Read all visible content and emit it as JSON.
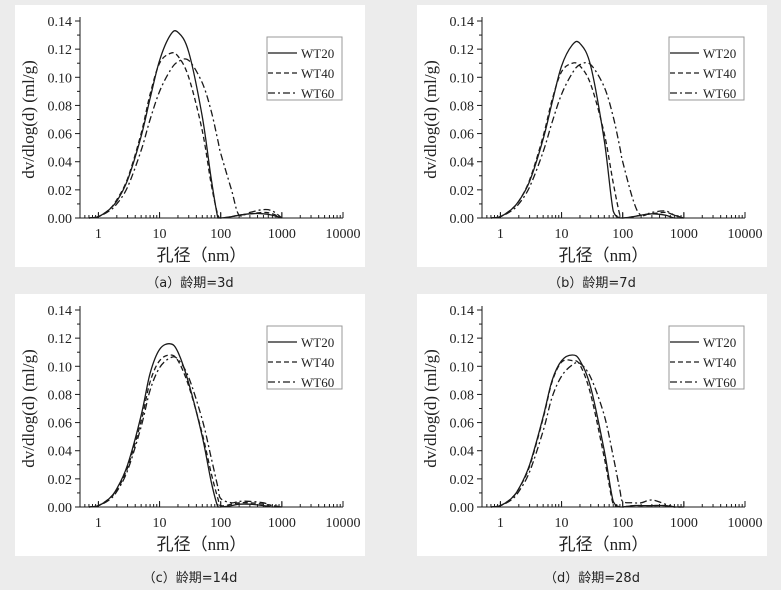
{
  "chart_data": [
    {
      "type": "line",
      "title": "（a）龄期=3d",
      "xlabel": "孔径（nm）",
      "ylabel": "dv/dlog(d) (ml/g)",
      "xscale": "log",
      "xlim": [
        0.5,
        10000
      ],
      "ylim": [
        0,
        0.14
      ],
      "xticks": [
        "1",
        "10",
        "100",
        "1000",
        "10000"
      ],
      "yticks": [
        "0.00",
        "0.02",
        "0.04",
        "0.06",
        "0.08",
        "0.10",
        "0.12",
        "0.14"
      ],
      "legend_position": "top-right",
      "x": [
        0.7,
        1,
        1.5,
        2,
        3,
        5,
        7,
        10,
        15,
        20,
        30,
        50,
        70,
        90,
        100,
        150,
        200,
        300,
        500,
        700,
        1000
      ],
      "series": [
        {
          "name": "WT20",
          "values": [
            0,
            0.001,
            0.006,
            0.012,
            0.027,
            0.058,
            0.085,
            0.112,
            0.13,
            0.132,
            0.118,
            0.072,
            0.028,
            0.0,
            0,
            0.001,
            0.002,
            0.003,
            0.003,
            0.002,
            0
          ]
        },
        {
          "name": "WT40",
          "values": [
            0,
            0.001,
            0.006,
            0.013,
            0.028,
            0.06,
            0.088,
            0.11,
            0.117,
            0.115,
            0.1,
            0.062,
            0.024,
            0.002,
            0,
            0.001,
            0.002,
            0.003,
            0.004,
            0.003,
            0
          ]
        },
        {
          "name": "WT60",
          "values": [
            0,
            0.001,
            0.005,
            0.01,
            0.022,
            0.048,
            0.07,
            0.09,
            0.105,
            0.111,
            0.112,
            0.096,
            0.076,
            0.055,
            0.046,
            0.02,
            0.002,
            0.004,
            0.006,
            0.005,
            0
          ]
        }
      ]
    },
    {
      "type": "line",
      "title": "（b）龄期=7d",
      "xlabel": "孔径（nm）",
      "ylabel": "dv/dlog(d) (ml/g)",
      "xscale": "log",
      "xlim": [
        0.5,
        10000
      ],
      "ylim": [
        0,
        0.14
      ],
      "xticks": [
        "1",
        "10",
        "100",
        "1000",
        "10000"
      ],
      "yticks": [
        "0.00",
        "0.02",
        "0.04",
        "0.06",
        "0.08",
        "0.10",
        "0.12",
        "0.14"
      ],
      "legend_position": "top-right",
      "x": [
        0.7,
        1,
        1.5,
        2,
        3,
        5,
        7,
        10,
        15,
        20,
        30,
        50,
        70,
        90,
        100,
        150,
        200,
        300,
        500,
        700,
        1000
      ],
      "series": [
        {
          "name": "WT20",
          "values": [
            0,
            0.001,
            0.006,
            0.012,
            0.026,
            0.056,
            0.082,
            0.108,
            0.123,
            0.124,
            0.108,
            0.055,
            0.005,
            0,
            0,
            0.001,
            0.002,
            0.003,
            0.002,
            0,
            0
          ]
        },
        {
          "name": "WT40",
          "values": [
            0,
            0.001,
            0.006,
            0.012,
            0.027,
            0.058,
            0.084,
            0.104,
            0.11,
            0.108,
            0.095,
            0.06,
            0.025,
            0.002,
            0,
            0.001,
            0.002,
            0.003,
            0.004,
            0.002,
            0
          ]
        },
        {
          "name": "WT60",
          "values": [
            0,
            0.001,
            0.005,
            0.01,
            0.022,
            0.047,
            0.068,
            0.088,
            0.103,
            0.109,
            0.109,
            0.093,
            0.072,
            0.05,
            0.04,
            0.012,
            0.002,
            0.004,
            0.005,
            0.002,
            0
          ]
        }
      ]
    },
    {
      "type": "line",
      "title": "（c）龄期=14d",
      "xlabel": "孔径（nm）",
      "ylabel": "dv/dlog(d) (ml/g)",
      "xscale": "log",
      "xlim": [
        0.5,
        10000
      ],
      "ylim": [
        0,
        0.14
      ],
      "xticks": [
        "1",
        "10",
        "100",
        "1000",
        "10000"
      ],
      "yticks": [
        "0.00",
        "0.02",
        "0.04",
        "0.06",
        "0.08",
        "0.10",
        "0.12",
        "0.14"
      ],
      "legend_position": "top-right",
      "x": [
        0.7,
        1,
        1.5,
        2,
        3,
        5,
        7,
        10,
        15,
        20,
        30,
        50,
        70,
        90,
        100,
        150,
        200,
        300,
        500,
        700,
        1000
      ],
      "series": [
        {
          "name": "WT20",
          "values": [
            0,
            0.001,
            0.006,
            0.013,
            0.03,
            0.065,
            0.095,
            0.112,
            0.116,
            0.11,
            0.088,
            0.05,
            0.018,
            0.0,
            0,
            0.001,
            0.002,
            0.002,
            0.001,
            0,
            0
          ]
        },
        {
          "name": "WT40",
          "values": [
            0,
            0.001,
            0.006,
            0.012,
            0.028,
            0.061,
            0.089,
            0.104,
            0.108,
            0.104,
            0.086,
            0.052,
            0.024,
            0.006,
            0.001,
            0.002,
            0.003,
            0.003,
            0.002,
            0.001,
            0
          ]
        },
        {
          "name": "WT60",
          "values": [
            0,
            0.001,
            0.005,
            0.011,
            0.026,
            0.057,
            0.083,
            0.099,
            0.106,
            0.105,
            0.092,
            0.062,
            0.035,
            0.014,
            0.006,
            0.003,
            0.004,
            0.004,
            0.003,
            0.001,
            0
          ]
        }
      ]
    },
    {
      "type": "line",
      "title": "（d）龄期=28d",
      "xlabel": "孔径（nm）",
      "ylabel": "dv/dlog(d) (ml/g)",
      "xscale": "log",
      "xlim": [
        0.5,
        10000
      ],
      "ylim": [
        0,
        0.14
      ],
      "xticks": [
        "1",
        "10",
        "100",
        "1000",
        "10000"
      ],
      "yticks": [
        "0.00",
        "0.02",
        "0.04",
        "0.06",
        "0.08",
        "0.10",
        "0.12",
        "0.14"
      ],
      "legend_position": "top-right",
      "x": [
        0.7,
        1,
        1.5,
        2,
        3,
        5,
        7,
        10,
        15,
        20,
        30,
        50,
        70,
        90,
        100,
        150,
        200,
        300,
        500,
        700,
        1000
      ],
      "series": [
        {
          "name": "WT20",
          "values": [
            0,
            0.001,
            0.006,
            0.013,
            0.03,
            0.064,
            0.09,
            0.104,
            0.108,
            0.104,
            0.085,
            0.04,
            0.004,
            0,
            0,
            0.001,
            0.001,
            0.001,
            0.001,
            0,
            0
          ]
        },
        {
          "name": "WT40",
          "values": [
            0,
            0.001,
            0.006,
            0.013,
            0.029,
            0.063,
            0.089,
            0.103,
            0.104,
            0.101,
            0.08,
            0.035,
            0.002,
            0,
            0,
            0.001,
            0.001,
            0.001,
            0.001,
            0,
            0
          ]
        },
        {
          "name": "WT60",
          "values": [
            0,
            0.001,
            0.005,
            0.011,
            0.025,
            0.054,
            0.078,
            0.093,
            0.101,
            0.102,
            0.092,
            0.065,
            0.036,
            0.012,
            0.004,
            0.003,
            0.003,
            0.005,
            0.002,
            0,
            0
          ]
        }
      ]
    }
  ],
  "series_styles": {
    "WT20": "solid",
    "WT40": "dash",
    "WT60": "dash-dot"
  },
  "line_color": "#1a1a1a"
}
